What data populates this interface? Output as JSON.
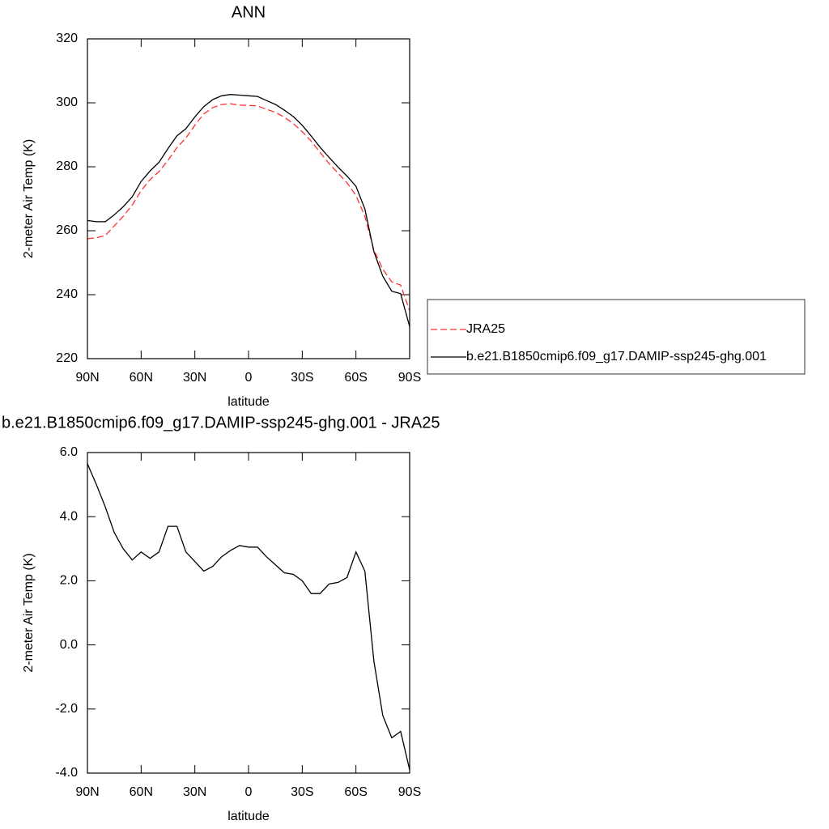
{
  "chart_data": [
    {
      "type": "line",
      "title": "ANN",
      "x_label": "latitude",
      "y_label": "2-meter Air Temp (K)",
      "x": [
        90,
        85,
        80,
        75,
        70,
        65,
        60,
        55,
        50,
        45,
        40,
        35,
        30,
        25,
        20,
        15,
        10,
        5,
        0,
        -5,
        -10,
        -15,
        -20,
        -25,
        -30,
        -35,
        -40,
        -45,
        -50,
        -55,
        -60,
        -65,
        -70,
        -75,
        -80,
        -85,
        -90
      ],
      "xlim": [
        90,
        -90
      ],
      "xticks": [
        {
          "value": 90,
          "label": "90N"
        },
        {
          "value": 60,
          "label": "60N"
        },
        {
          "value": 30,
          "label": "30N"
        },
        0,
        {
          "value": -30,
          "label": "30S"
        },
        {
          "value": -60,
          "label": "60S"
        },
        {
          "value": -90,
          "label": "90S"
        }
      ],
      "ylim": [
        220,
        320
      ],
      "yticks": [
        220,
        240,
        260,
        280,
        300,
        320
      ],
      "legend": "right",
      "series": [
        {
          "name": "JRA25",
          "color": "#ff3030",
          "dashed": true,
          "values": [
            257.5,
            257.8,
            258.5,
            261.5,
            264.5,
            268,
            272.5,
            276,
            278.5,
            282,
            286,
            289,
            293,
            296.5,
            298.5,
            299.5,
            299.7,
            299.3,
            299.2,
            299,
            298,
            297,
            295.5,
            293.5,
            291,
            288,
            284.5,
            281,
            278,
            275,
            271,
            264.5,
            254,
            248,
            244,
            243,
            235
          ]
        },
        {
          "name": "b.e21.B1850cmip6.f09_g17.DAMIP-ssp245-ghg.001",
          "color": "#000000",
          "dashed": false,
          "values": [
            263.2,
            262.8,
            262.8,
            265,
            267.5,
            270.6,
            275.4,
            278.7,
            281.4,
            285.7,
            289.7,
            291.9,
            295.6,
            298.8,
            301,
            302.2,
            302.6,
            302.4,
            302.2,
            302,
            300.7,
            299.5,
            297.7,
            295.7,
            293,
            289.6,
            286.1,
            282.9,
            279.9,
            277.1,
            273.9,
            266.8,
            253.5,
            245.8,
            241.1,
            240.3,
            230
          ]
        }
      ]
    },
    {
      "type": "line",
      "title": "b.e21.B1850cmip6.f09_g17.DAMIP-ssp245-ghg.001 - JRA25",
      "x_label": "latitude",
      "y_label": "2-meter Air Temp (K)",
      "x": [
        90,
        85,
        80,
        75,
        70,
        65,
        60,
        55,
        50,
        45,
        40,
        35,
        30,
        25,
        20,
        15,
        10,
        5,
        0,
        -5,
        -10,
        -15,
        -20,
        -25,
        -30,
        -35,
        -40,
        -45,
        -50,
        -55,
        -60,
        -65,
        -70,
        -75,
        -80,
        -85,
        -90
      ],
      "xlim": [
        90,
        -90
      ],
      "xticks": [
        {
          "value": 90,
          "label": "90N"
        },
        {
          "value": 60,
          "label": "60N"
        },
        {
          "value": 30,
          "label": "30N"
        },
        0,
        {
          "value": -30,
          "label": "30S"
        },
        {
          "value": -60,
          "label": "60S"
        },
        {
          "value": -90,
          "label": "90S"
        }
      ],
      "ylim": [
        -4,
        6
      ],
      "yticks": [
        {
          "value": -4,
          "label": "-4.0"
        },
        {
          "value": -2,
          "label": "-2.0"
        },
        {
          "value": 0,
          "label": "0.0"
        },
        {
          "value": 2,
          "label": "2.0"
        },
        {
          "value": 4,
          "label": "4.0"
        },
        {
          "value": 6,
          "label": "6.0"
        }
      ],
      "series": [
        {
          "color": "#000000",
          "dashed": false,
          "values": [
            5.65,
            5.0,
            4.3,
            3.5,
            3.0,
            2.65,
            2.9,
            2.7,
            2.9,
            3.7,
            3.7,
            2.9,
            2.6,
            2.3,
            2.45,
            2.75,
            2.95,
            3.1,
            3.05,
            3.05,
            2.75,
            2.5,
            2.25,
            2.2,
            2.0,
            1.6,
            1.6,
            1.9,
            1.95,
            2.1,
            2.9,
            2.3,
            -0.5,
            -2.2,
            -2.9,
            -2.7,
            -3.9
          ]
        }
      ]
    }
  ]
}
